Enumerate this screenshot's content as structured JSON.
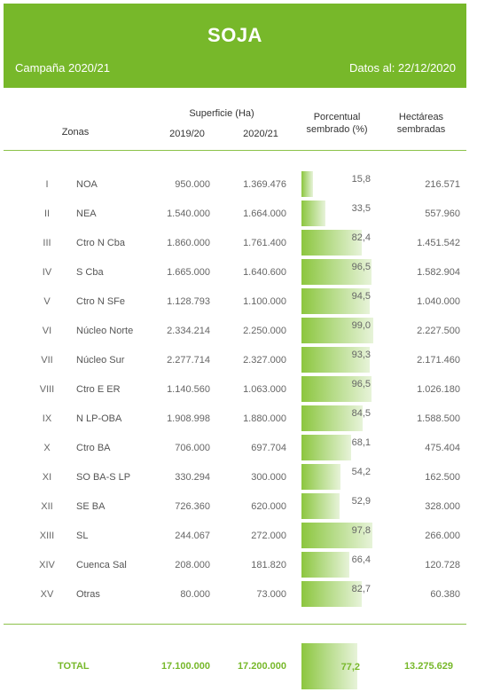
{
  "header": {
    "title": "SOJA",
    "campaign": "Campaña 2020/21",
    "date": "Datos al: 22/12/2020"
  },
  "columns": {
    "zonas": "Zonas",
    "superficie": "Superficie (Ha)",
    "prev_season": "2019/20",
    "curr_season": "2020/21",
    "porcentual_1": "Porcentual",
    "porcentual_2": "sembrado (%)",
    "hectareas_1": "Hectáreas",
    "hectareas_2": "sembradas"
  },
  "colors": {
    "accent": "#77b82a",
    "bar_start": "#8cc63e",
    "bar_end": "#e7f3d9"
  },
  "rows": [
    {
      "num": "I",
      "zone": "NOA",
      "prev": "950.000",
      "curr": "1.369.476",
      "pct": "15,8",
      "pct_value": 15.8,
      "ha": "216.571"
    },
    {
      "num": "II",
      "zone": "NEA",
      "prev": "1.540.000",
      "curr": "1.664.000",
      "pct": "33,5",
      "pct_value": 33.5,
      "ha": "557.960"
    },
    {
      "num": "III",
      "zone": "Ctro N Cba",
      "prev": "1.860.000",
      "curr": "1.761.400",
      "pct": "82,4",
      "pct_value": 82.4,
      "ha": "1.451.542"
    },
    {
      "num": "IV",
      "zone": "S Cba",
      "prev": "1.665.000",
      "curr": "1.640.600",
      "pct": "96,5",
      "pct_value": 96.5,
      "ha": "1.582.904"
    },
    {
      "num": "V",
      "zone": "Ctro N SFe",
      "prev": "1.128.793",
      "curr": "1.100.000",
      "pct": "94,5",
      "pct_value": 94.5,
      "ha": "1.040.000"
    },
    {
      "num": "VI",
      "zone": "Núcleo Norte",
      "prev": "2.334.214",
      "curr": "2.250.000",
      "pct": "99,0",
      "pct_value": 99.0,
      "ha": "2.227.500"
    },
    {
      "num": "VII",
      "zone": "Núcleo Sur",
      "prev": "2.277.714",
      "curr": "2.327.000",
      "pct": "93,3",
      "pct_value": 93.3,
      "ha": "2.171.460"
    },
    {
      "num": "VIII",
      "zone": "Ctro E ER",
      "prev": "1.140.560",
      "curr": "1.063.000",
      "pct": "96,5",
      "pct_value": 96.5,
      "ha": "1.026.180"
    },
    {
      "num": "IX",
      "zone": "N LP-OBA",
      "prev": "1.908.998",
      "curr": "1.880.000",
      "pct": "84,5",
      "pct_value": 84.5,
      "ha": "1.588.500"
    },
    {
      "num": "X",
      "zone": "Ctro BA",
      "prev": "706.000",
      "curr": "697.704",
      "pct": "68,1",
      "pct_value": 68.1,
      "ha": "475.404"
    },
    {
      "num": "XI",
      "zone": "SO BA-S LP",
      "prev": "330.294",
      "curr": "300.000",
      "pct": "54,2",
      "pct_value": 54.2,
      "ha": "162.500"
    },
    {
      "num": "XII",
      "zone": "SE BA",
      "prev": "726.360",
      "curr": "620.000",
      "pct": "52,9",
      "pct_value": 52.9,
      "ha": "328.000"
    },
    {
      "num": "XIII",
      "zone": "SL",
      "prev": "244.067",
      "curr": "272.000",
      "pct": "97,8",
      "pct_value": 97.8,
      "ha": "266.000"
    },
    {
      "num": "XIV",
      "zone": "Cuenca Sal",
      "prev": "208.000",
      "curr": "181.820",
      "pct": "66,4",
      "pct_value": 66.4,
      "ha": "120.728"
    },
    {
      "num": "XV",
      "zone": "Otras",
      "prev": "80.000",
      "curr": "73.000",
      "pct": "82,7",
      "pct_value": 82.7,
      "ha": "60.380"
    }
  ],
  "total": {
    "label": "TOTAL",
    "prev": "17.100.000",
    "curr": "17.200.000",
    "pct": "77,2",
    "pct_value": 77.2,
    "ha": "13.275.629"
  }
}
